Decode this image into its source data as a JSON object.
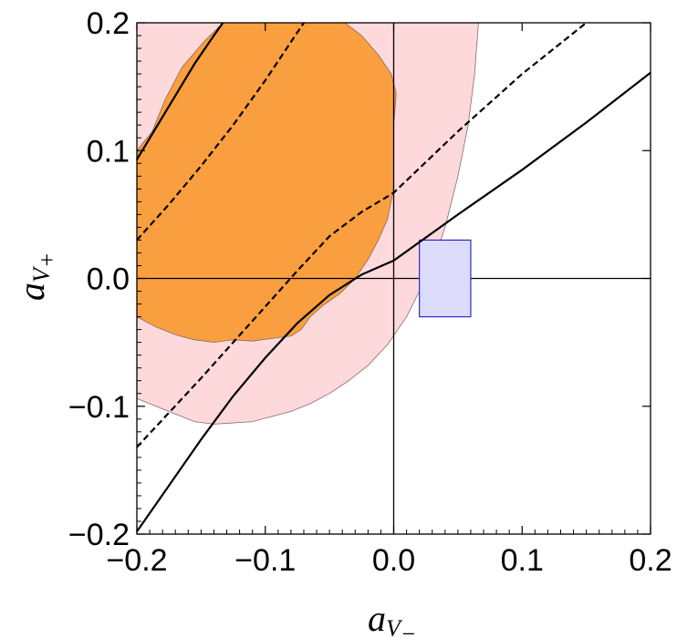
{
  "chart_data": {
    "type": "contour",
    "xlabel": "a",
    "xlabel_sub": "V",
    "xlabel_subsub": "−",
    "ylabel": "a",
    "ylabel_sub": "V",
    "ylabel_subsub": "+",
    "xlim": [
      -0.2,
      0.2
    ],
    "ylim": [
      -0.2,
      0.2
    ],
    "xticks": [
      -0.2,
      -0.1,
      0.0,
      0.1,
      0.2
    ],
    "yticks": [
      -0.2,
      -0.1,
      0.0,
      0.1,
      0.2
    ],
    "xtick_labels": [
      "−0.2",
      "−0.1",
      "0.0",
      "0.1",
      "0.2"
    ],
    "ytick_labels": [
      "−0.2",
      "−0.1",
      "0.0",
      "0.1",
      "0.2"
    ],
    "colors": {
      "outer_region": "#fdd9db",
      "inner_region": "#fa9f3f",
      "rectangle_fill": "#dcdcfa",
      "rectangle_stroke": "#2a2ad0",
      "lines": "#000000"
    },
    "regions": [
      {
        "name": "outer",
        "points": [
          [
            -0.2,
            -0.094
          ],
          [
            -0.185,
            -0.1
          ],
          [
            -0.17,
            -0.106
          ],
          [
            -0.155,
            -0.112
          ],
          [
            -0.14,
            -0.114
          ],
          [
            -0.125,
            -0.113
          ],
          [
            -0.11,
            -0.112
          ],
          [
            -0.095,
            -0.108
          ],
          [
            -0.08,
            -0.104
          ],
          [
            -0.065,
            -0.098
          ],
          [
            -0.05,
            -0.09
          ],
          [
            -0.035,
            -0.08
          ],
          [
            -0.02,
            -0.068
          ],
          [
            -0.005,
            -0.052
          ],
          [
            0.01,
            -0.03
          ],
          [
            0.02,
            -0.01
          ],
          [
            0.03,
            0.01
          ],
          [
            0.04,
            0.04
          ],
          [
            0.05,
            0.08
          ],
          [
            0.058,
            0.12
          ],
          [
            0.063,
            0.16
          ],
          [
            0.066,
            0.2
          ],
          [
            -0.2,
            0.2
          ]
        ]
      },
      {
        "name": "inner",
        "points": [
          [
            -0.2,
            -0.03
          ],
          [
            -0.185,
            -0.038
          ],
          [
            -0.17,
            -0.044
          ],
          [
            -0.155,
            -0.048
          ],
          [
            -0.14,
            -0.05
          ],
          [
            -0.125,
            -0.048
          ],
          [
            -0.11,
            -0.049
          ],
          [
            -0.095,
            -0.047
          ],
          [
            -0.08,
            -0.045
          ],
          [
            -0.072,
            -0.04
          ],
          [
            -0.065,
            -0.03
          ],
          [
            -0.055,
            -0.021
          ],
          [
            -0.042,
            -0.012
          ],
          [
            -0.03,
            0.0
          ],
          [
            -0.02,
            0.015
          ],
          [
            -0.012,
            0.03
          ],
          [
            -0.005,
            0.046
          ],
          [
            0.0,
            0.07
          ],
          [
            0.0,
            0.12
          ],
          [
            0.002,
            0.145
          ],
          [
            -0.002,
            0.16
          ],
          [
            -0.012,
            0.175
          ],
          [
            -0.025,
            0.19
          ],
          [
            -0.038,
            0.2
          ],
          [
            -0.133,
            0.2
          ],
          [
            -0.148,
            0.185
          ],
          [
            -0.165,
            0.165
          ],
          [
            -0.178,
            0.14
          ],
          [
            -0.188,
            0.115
          ],
          [
            -0.2,
            0.1
          ]
        ]
      }
    ],
    "lines": [
      {
        "name": "solid-upper",
        "style": "solid",
        "points": [
          [
            -0.2,
            0.093
          ],
          [
            -0.185,
            0.118
          ],
          [
            -0.17,
            0.143
          ],
          [
            -0.155,
            0.168
          ],
          [
            -0.14,
            0.19
          ],
          [
            -0.133,
            0.2
          ]
        ]
      },
      {
        "name": "dashed-upper",
        "style": "dashed",
        "points": [
          [
            -0.2,
            0.03
          ],
          [
            -0.175,
            0.058
          ],
          [
            -0.15,
            0.088
          ],
          [
            -0.125,
            0.12
          ],
          [
            -0.1,
            0.155
          ],
          [
            -0.08,
            0.185
          ],
          [
            -0.07,
            0.2
          ]
        ]
      },
      {
        "name": "dashed-lower",
        "style": "dashed",
        "points": [
          [
            -0.2,
            -0.132
          ],
          [
            -0.175,
            -0.105
          ],
          [
            -0.15,
            -0.078
          ],
          [
            -0.125,
            -0.05
          ],
          [
            -0.1,
            -0.022
          ],
          [
            -0.075,
            0.006
          ],
          [
            -0.05,
            0.033
          ],
          [
            -0.025,
            0.052
          ],
          [
            0.0,
            0.067
          ],
          [
            0.05,
            0.115
          ],
          [
            0.1,
            0.16
          ],
          [
            0.15,
            0.2
          ]
        ]
      },
      {
        "name": "solid-lower",
        "style": "solid",
        "points": [
          [
            -0.2,
            -0.198
          ],
          [
            -0.175,
            -0.162
          ],
          [
            -0.15,
            -0.126
          ],
          [
            -0.125,
            -0.092
          ],
          [
            -0.1,
            -0.062
          ],
          [
            -0.075,
            -0.035
          ],
          [
            -0.05,
            -0.013
          ],
          [
            -0.025,
            0.003
          ],
          [
            0.0,
            0.014
          ],
          [
            0.05,
            0.05
          ],
          [
            0.1,
            0.085
          ],
          [
            0.15,
            0.122
          ],
          [
            0.2,
            0.161
          ]
        ]
      }
    ],
    "rectangle": {
      "x": [
        0.02,
        0.06
      ],
      "y": [
        -0.03,
        0.03
      ]
    },
    "grid": false,
    "zero_lines": true
  }
}
